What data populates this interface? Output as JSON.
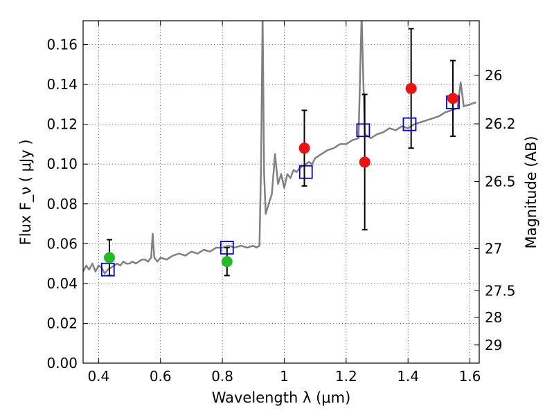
{
  "chart_data": {
    "type": "scatter",
    "title": "",
    "xlabel": "Wavelength  λ (μm)",
    "ylabel": "Flux  F_ν  ( μJy )",
    "ylabel_right": "Magnitude (AB)",
    "xlim": [
      0.35,
      1.63
    ],
    "ylim": [
      0.0,
      0.172
    ],
    "grid": true,
    "x_ticks": [
      {
        "value": 0.4,
        "label": "0.4"
      },
      {
        "value": 0.6,
        "label": "0.6"
      },
      {
        "value": 0.8,
        "label": "0.8"
      },
      {
        "value": 1.0,
        "label": "1"
      },
      {
        "value": 1.2,
        "label": "1.2"
      },
      {
        "value": 1.4,
        "label": "1.4"
      },
      {
        "value": 1.6,
        "label": "1.6"
      }
    ],
    "y_ticks": [
      {
        "value": 0.0,
        "label": "0.00"
      },
      {
        "value": 0.02,
        "label": "0.02"
      },
      {
        "value": 0.04,
        "label": "0.04"
      },
      {
        "value": 0.06,
        "label": "0.06"
      },
      {
        "value": 0.08,
        "label": "0.08"
      },
      {
        "value": 0.1,
        "label": "0.10"
      },
      {
        "value": 0.12,
        "label": "0.12"
      },
      {
        "value": 0.14,
        "label": "0.14"
      },
      {
        "value": 0.16,
        "label": "0.16"
      }
    ],
    "right_ticks": [
      {
        "value": 26.0,
        "label": "26"
      },
      {
        "value": 26.2,
        "label": "26.2"
      },
      {
        "value": 26.5,
        "label": "26.5"
      },
      {
        "value": 27.0,
        "label": "27"
      },
      {
        "value": 27.5,
        "label": "27.5"
      },
      {
        "value": 28.0,
        "label": "28"
      },
      {
        "value": 29.0,
        "label": "29"
      }
    ],
    "colors": {
      "spectrum": "#808080",
      "model": "#0000cc",
      "optical": "#22bb22",
      "nir": "#ee1111",
      "errorbar": "#000000"
    },
    "series": [
      {
        "kind": "spectrum",
        "points": [
          [
            0.35,
            0.046
          ],
          [
            0.36,
            0.049
          ],
          [
            0.37,
            0.047
          ],
          [
            0.38,
            0.05
          ],
          [
            0.39,
            0.046
          ],
          [
            0.4,
            0.049
          ],
          [
            0.41,
            0.048
          ],
          [
            0.42,
            0.045
          ],
          [
            0.43,
            0.047
          ],
          [
            0.44,
            0.048
          ],
          [
            0.45,
            0.049
          ],
          [
            0.46,
            0.05
          ],
          [
            0.47,
            0.049
          ],
          [
            0.48,
            0.051
          ],
          [
            0.49,
            0.05
          ],
          [
            0.5,
            0.05
          ],
          [
            0.51,
            0.051
          ],
          [
            0.52,
            0.05
          ],
          [
            0.53,
            0.051
          ],
          [
            0.54,
            0.052
          ],
          [
            0.55,
            0.052
          ],
          [
            0.56,
            0.051
          ],
          [
            0.57,
            0.053
          ],
          [
            0.575,
            0.065
          ],
          [
            0.58,
            0.053
          ],
          [
            0.59,
            0.051
          ],
          [
            0.6,
            0.053
          ],
          [
            0.62,
            0.052
          ],
          [
            0.64,
            0.054
          ],
          [
            0.66,
            0.055
          ],
          [
            0.68,
            0.054
          ],
          [
            0.7,
            0.056
          ],
          [
            0.72,
            0.055
          ],
          [
            0.74,
            0.057
          ],
          [
            0.76,
            0.056
          ],
          [
            0.78,
            0.058
          ],
          [
            0.8,
            0.058
          ],
          [
            0.82,
            0.059
          ],
          [
            0.84,
            0.058
          ],
          [
            0.86,
            0.059
          ],
          [
            0.88,
            0.058
          ],
          [
            0.9,
            0.059
          ],
          [
            0.91,
            0.058
          ],
          [
            0.92,
            0.059
          ],
          [
            0.925,
            0.1
          ],
          [
            0.93,
            0.175
          ],
          [
            0.935,
            0.095
          ],
          [
            0.94,
            0.075
          ],
          [
            0.95,
            0.08
          ],
          [
            0.96,
            0.085
          ],
          [
            0.97,
            0.105
          ],
          [
            0.98,
            0.09
          ],
          [
            0.99,
            0.095
          ],
          [
            1.0,
            0.088
          ],
          [
            1.01,
            0.095
          ],
          [
            1.02,
            0.093
          ],
          [
            1.03,
            0.097
          ],
          [
            1.04,
            0.096
          ],
          [
            1.05,
            0.098
          ],
          [
            1.06,
            0.099
          ],
          [
            1.07,
            0.1
          ],
          [
            1.08,
            0.101
          ],
          [
            1.09,
            0.1
          ],
          [
            1.1,
            0.103
          ],
          [
            1.12,
            0.105
          ],
          [
            1.14,
            0.107
          ],
          [
            1.16,
            0.108
          ],
          [
            1.18,
            0.11
          ],
          [
            1.2,
            0.11
          ],
          [
            1.22,
            0.112
          ],
          [
            1.24,
            0.113
          ],
          [
            1.25,
            0.175
          ],
          [
            1.26,
            0.115
          ],
          [
            1.28,
            0.113
          ],
          [
            1.3,
            0.115
          ],
          [
            1.32,
            0.116
          ],
          [
            1.34,
            0.118
          ],
          [
            1.36,
            0.117
          ],
          [
            1.38,
            0.119
          ],
          [
            1.4,
            0.118
          ],
          [
            1.42,
            0.12
          ],
          [
            1.44,
            0.121
          ],
          [
            1.46,
            0.122
          ],
          [
            1.48,
            0.123
          ],
          [
            1.5,
            0.124
          ],
          [
            1.52,
            0.126
          ],
          [
            1.54,
            0.127
          ],
          [
            1.56,
            0.128
          ],
          [
            1.57,
            0.141
          ],
          [
            1.58,
            0.129
          ],
          [
            1.6,
            0.13
          ],
          [
            1.62,
            0.131
          ]
        ]
      },
      {
        "kind": "model",
        "marker": "open-square",
        "x": [
          0.43,
          0.815,
          1.07,
          1.255,
          1.405,
          1.545
        ],
        "y": [
          0.047,
          0.058,
          0.096,
          0.117,
          0.12,
          0.131
        ]
      },
      {
        "kind": "optical",
        "marker": "filled-circle",
        "x": [
          0.435,
          0.815
        ],
        "y": [
          0.053,
          0.051
        ],
        "err": [
          0.009,
          0.007
        ]
      },
      {
        "kind": "nir",
        "marker": "filled-circle",
        "x": [
          1.065,
          1.26,
          1.41,
          1.545
        ],
        "y": [
          0.108,
          0.101,
          0.138,
          0.133
        ],
        "err": [
          0.019,
          0.034,
          0.03,
          0.019
        ]
      }
    ]
  }
}
